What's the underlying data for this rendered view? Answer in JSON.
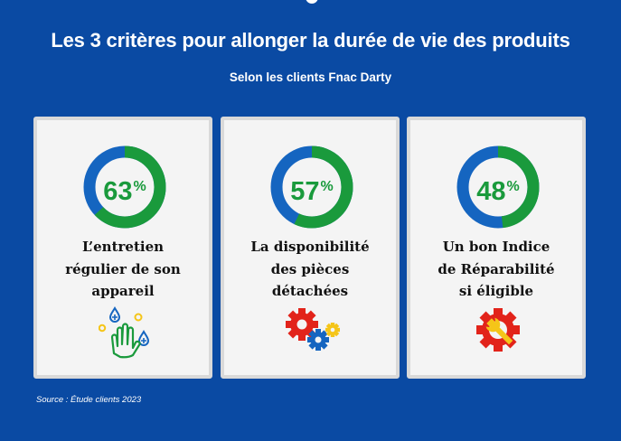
{
  "header": {
    "title": "Les 3 critères pour allonger la durée de vie des produits",
    "subtitle": "Selon les clients Fnac Darty"
  },
  "colors": {
    "background": "#0a4aa3",
    "green": "#1a9a3c",
    "blue": "#1565c0",
    "red": "#e2231a",
    "yellow": "#f5c518"
  },
  "cards": [
    {
      "value": 63,
      "percent_text": "63",
      "unit": "%",
      "lines": [
        "L’entretien",
        "régulier de son",
        "appareil"
      ],
      "icon": "hand-washing-icon"
    },
    {
      "value": 57,
      "percent_text": "57",
      "unit": "%",
      "lines": [
        "La disponibilité",
        "des pièces",
        "détachées"
      ],
      "icon": "gears-icon"
    },
    {
      "value": 48,
      "percent_text": "48",
      "unit": "%",
      "lines": [
        "Un bon Indice",
        "de Réparabilité",
        "si éligible"
      ],
      "icon": "repair-gear-wrench-icon"
    }
  ],
  "footer": {
    "source": "Source : Étude clients 2023"
  }
}
